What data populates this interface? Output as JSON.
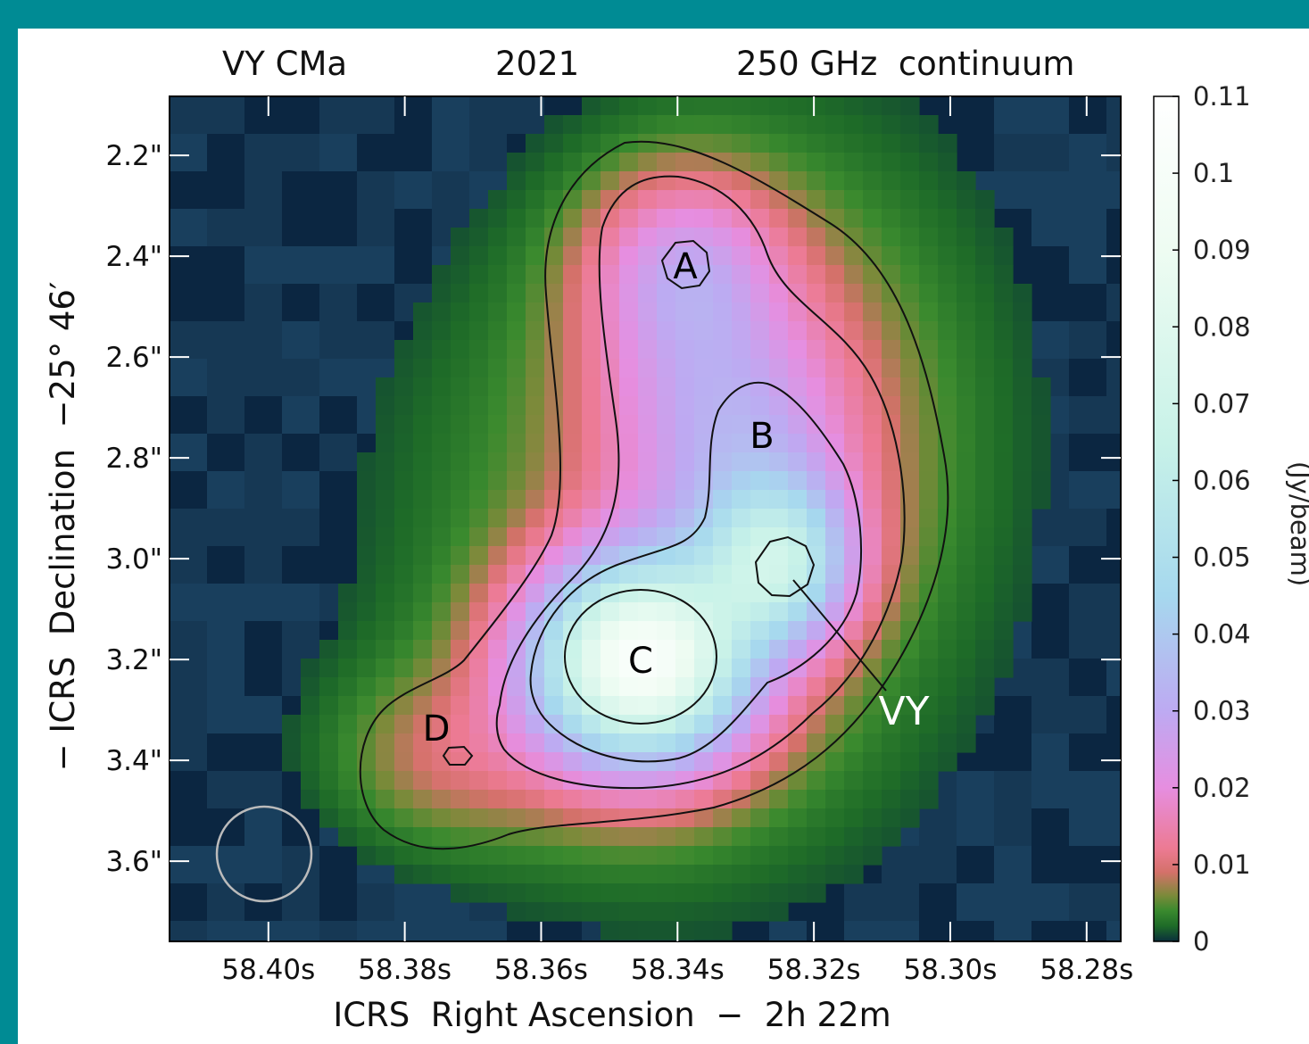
{
  "colors": {
    "frame_background": "#008b94",
    "contour": "#111111",
    "beam_ellipse": "#bbbbbb"
  },
  "chart_data": {
    "type": "heatmap",
    "title_parts": [
      "VY CMa",
      "2021",
      "250 GHz  continuum"
    ],
    "xlabel": "ICRS  Right Ascension  −  2h 22m",
    "ylabel": "− ICRS  Declination  −25° 46′",
    "x_ticks": [
      "58.40s",
      "58.38s",
      "58.36s",
      "58.34s",
      "58.32s",
      "58.30s",
      "58.28s"
    ],
    "x_tick_values": [
      58.4,
      58.38,
      58.36,
      58.34,
      58.32,
      58.3,
      58.28
    ],
    "xlim": [
      58.4145,
      58.275
    ],
    "y_ticks": [
      "2.2\"",
      "2.4\"",
      "2.6\"",
      "2.8\"",
      "3.0\"",
      "3.2\"",
      "3.4\"",
      "3.6\""
    ],
    "y_tick_values": [
      2.2,
      2.4,
      2.6,
      2.8,
      3.0,
      3.2,
      3.4,
      3.6
    ],
    "ylim": [
      2.083,
      3.759
    ],
    "colorbar": {
      "label": "(Jy/beam)",
      "ticks": [
        "0.11",
        "0.1",
        "0.09",
        "0.08",
        "0.07",
        "0.06",
        "0.05",
        "0.04",
        "0.03",
        "0.02",
        "0.01",
        "0"
      ],
      "tick_values": [
        0.11,
        0.1,
        0.09,
        0.08,
        0.07,
        0.06,
        0.05,
        0.04,
        0.03,
        0.02,
        0.01,
        0
      ],
      "range": [
        0,
        0.11
      ],
      "stops": [
        {
          "v": 0.0,
          "color": "#0a2f3c"
        },
        {
          "v": 0.002,
          "color": "#1e6b28"
        },
        {
          "v": 0.004,
          "color": "#3a8a2e"
        },
        {
          "v": 0.006,
          "color": "#7c8a3a"
        },
        {
          "v": 0.009,
          "color": "#d4716a"
        },
        {
          "v": 0.012,
          "color": "#ec7a92"
        },
        {
          "v": 0.02,
          "color": "#e68ee0"
        },
        {
          "v": 0.03,
          "color": "#bdaaf2"
        },
        {
          "v": 0.045,
          "color": "#a6d8ee"
        },
        {
          "v": 0.065,
          "color": "#c8f2e8"
        },
        {
          "v": 0.09,
          "color": "#eefcf2"
        },
        {
          "v": 0.11,
          "color": "#ffffff"
        }
      ]
    },
    "background_color": "#12324e",
    "regions": [
      {
        "label": "A"
      },
      {
        "label": "B"
      },
      {
        "label": "C"
      },
      {
        "label": "D"
      }
    ],
    "annotation": {
      "label": "VY"
    }
  }
}
